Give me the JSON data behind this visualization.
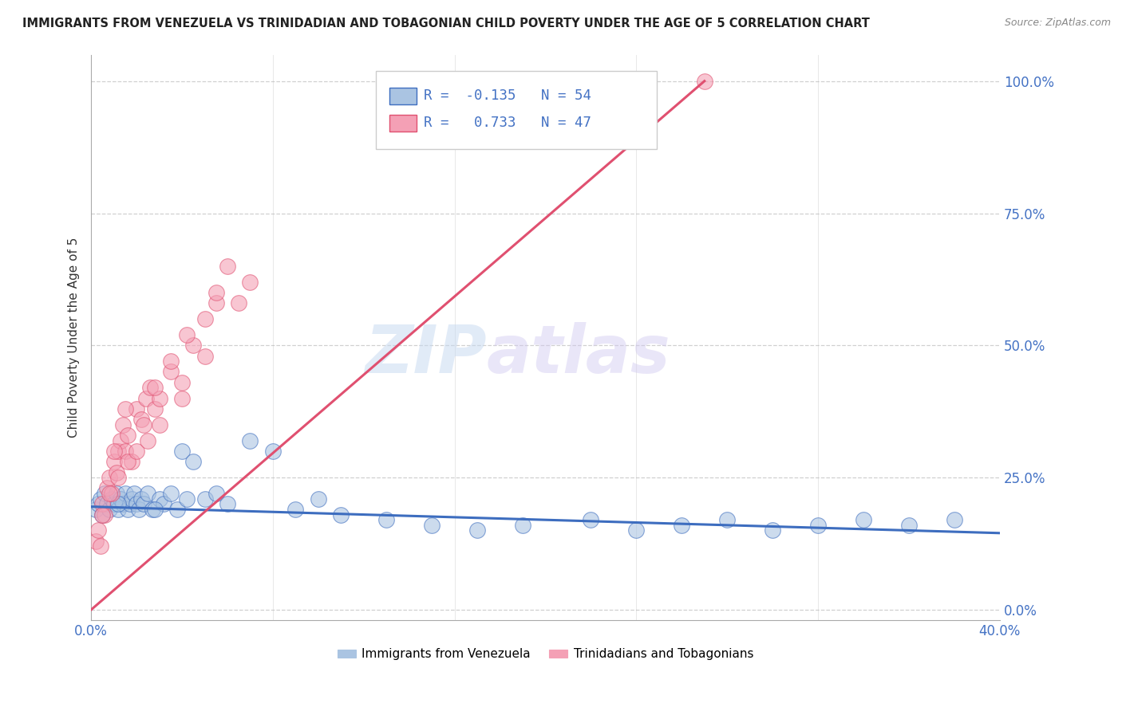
{
  "title": "IMMIGRANTS FROM VENEZUELA VS TRINIDADIAN AND TOBAGONIAN CHILD POVERTY UNDER THE AGE OF 5 CORRELATION CHART",
  "source": "Source: ZipAtlas.com",
  "ylabel": "Child Poverty Under the Age of 5",
  "ytick_vals": [
    0,
    25,
    50,
    75,
    100
  ],
  "blue_R": -0.135,
  "blue_N": 54,
  "pink_R": 0.733,
  "pink_N": 47,
  "blue_color": "#aac4e2",
  "pink_color": "#f4a0b5",
  "blue_line_color": "#3d6dbf",
  "pink_line_color": "#e05070",
  "legend_label_blue": "Immigrants from Venezuela",
  "legend_label_pink": "Trinidadians and Tobagonians",
  "watermark_zip": "ZIP",
  "watermark_atlas": "atlas",
  "background_color": "#ffffff",
  "blue_scatter_x": [
    0.2,
    0.3,
    0.4,
    0.5,
    0.6,
    0.7,
    0.8,
    0.9,
    1.0,
    1.1,
    1.2,
    1.3,
    1.4,
    1.5,
    1.6,
    1.7,
    1.8,
    1.9,
    2.0,
    2.1,
    2.2,
    2.3,
    2.5,
    2.7,
    3.0,
    3.2,
    3.5,
    3.8,
    4.0,
    4.5,
    5.0,
    5.5,
    6.0,
    7.0,
    8.0,
    9.0,
    10.0,
    11.0,
    13.0,
    15.0,
    17.0,
    19.0,
    22.0,
    24.0,
    26.0,
    28.0,
    30.0,
    32.0,
    34.0,
    36.0,
    38.0,
    1.2,
    2.8,
    4.2
  ],
  "blue_scatter_y": [
    19,
    20,
    21,
    18,
    22,
    20,
    19,
    21,
    20,
    22,
    19,
    21,
    20,
    22,
    19,
    20,
    21,
    22,
    20,
    19,
    21,
    20,
    22,
    19,
    21,
    20,
    22,
    19,
    30,
    28,
    21,
    22,
    20,
    32,
    30,
    19,
    21,
    18,
    17,
    16,
    15,
    16,
    17,
    15,
    16,
    17,
    15,
    16,
    17,
    16,
    17,
    20,
    19,
    21
  ],
  "pink_scatter_x": [
    0.2,
    0.3,
    0.4,
    0.5,
    0.6,
    0.7,
    0.8,
    0.9,
    1.0,
    1.1,
    1.2,
    1.3,
    1.4,
    1.5,
    1.6,
    1.8,
    2.0,
    2.2,
    2.4,
    2.6,
    2.8,
    3.0,
    3.5,
    4.0,
    4.5,
    5.0,
    5.5,
    6.0,
    0.5,
    0.8,
    1.2,
    1.6,
    2.0,
    2.5,
    3.0,
    4.0,
    5.0,
    6.5,
    7.0,
    2.3,
    1.0,
    1.5,
    2.8,
    3.5,
    4.2,
    5.5,
    27.0
  ],
  "pink_scatter_y": [
    13,
    15,
    12,
    20,
    18,
    23,
    25,
    22,
    28,
    26,
    30,
    32,
    35,
    30,
    33,
    28,
    38,
    36,
    40,
    42,
    38,
    40,
    45,
    43,
    50,
    55,
    58,
    65,
    18,
    22,
    25,
    28,
    30,
    32,
    35,
    40,
    48,
    58,
    62,
    35,
    30,
    38,
    42,
    47,
    52,
    60,
    100
  ]
}
